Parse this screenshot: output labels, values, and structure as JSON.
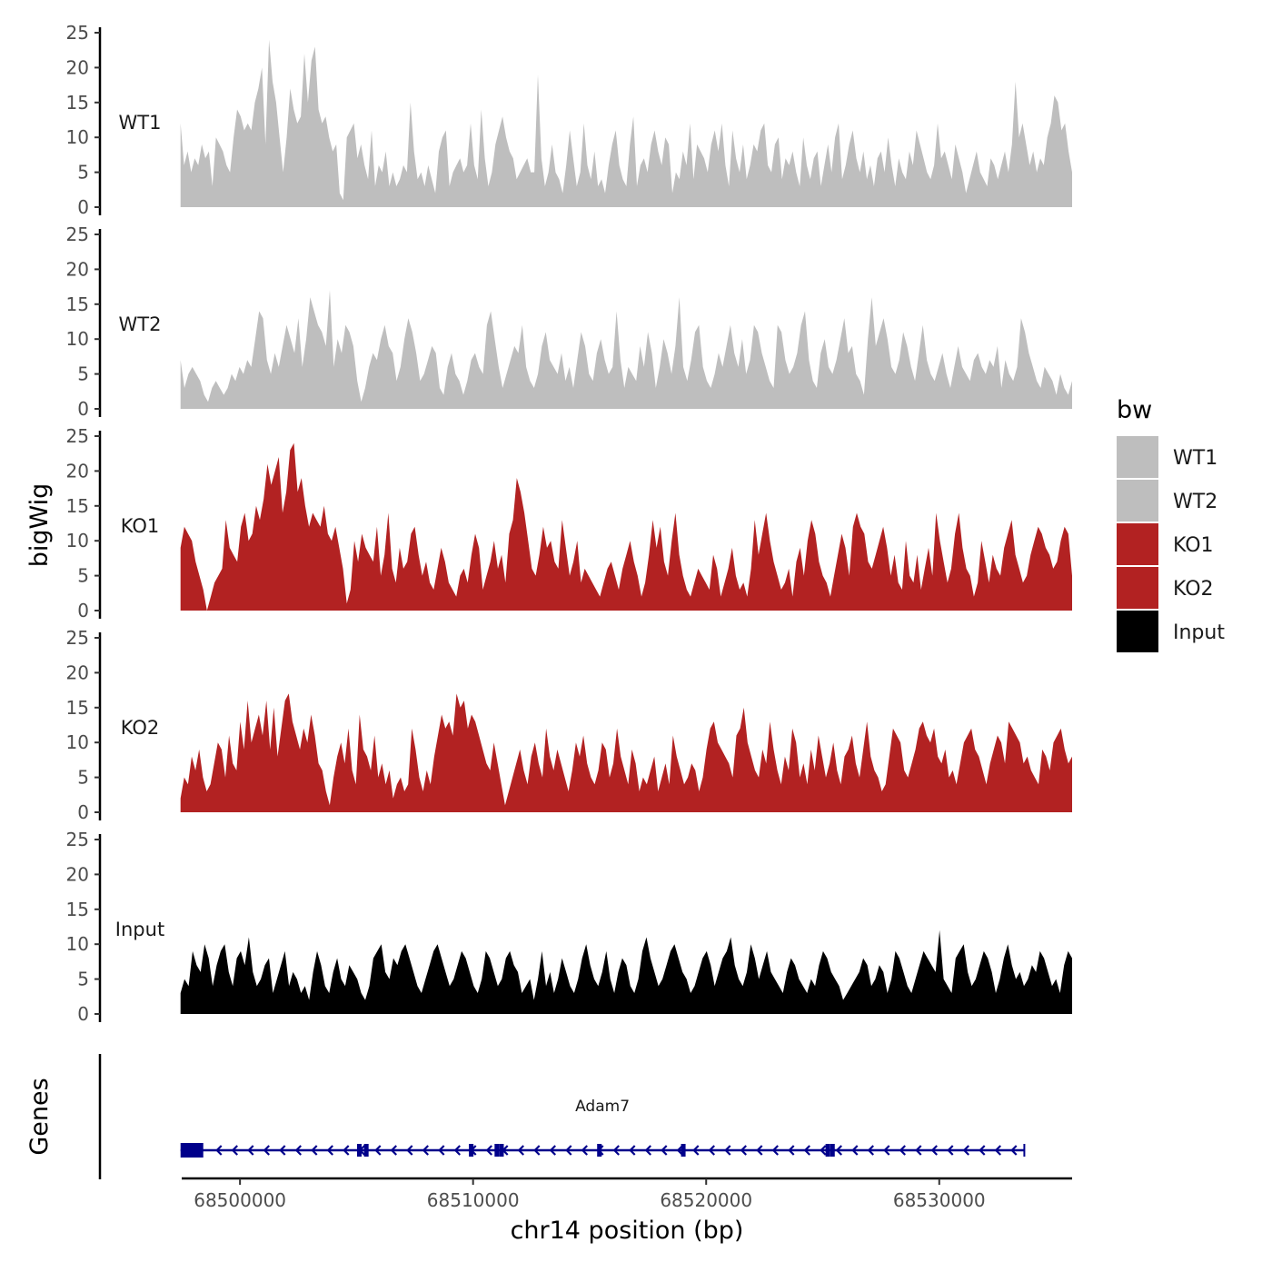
{
  "chart_data": {
    "type": "area",
    "ylabel": "bigWig",
    "xlabel": "chr14 position (bp)",
    "chromosome": "chr14",
    "x_range": [
      68497500,
      68535700
    ],
    "ylim": [
      0,
      25
    ],
    "y_ticks": [
      "0",
      "5",
      "10",
      "15",
      "20",
      "25"
    ],
    "x_ticks": [
      {
        "label": "68500000",
        "value": 68500000
      },
      {
        "label": "68510000",
        "value": 68510000
      },
      {
        "label": "68520000",
        "value": 68520000
      },
      {
        "label": "68530000",
        "value": 68530000
      }
    ],
    "legend": {
      "title": "bw",
      "entries": [
        {
          "label": "WT1",
          "color": "#bebebe"
        },
        {
          "label": "WT2",
          "color": "#bebebe"
        },
        {
          "label": "KO1",
          "color": "#b22222"
        },
        {
          "label": "KO2",
          "color": "#b22222"
        },
        {
          "label": "Input",
          "color": "#000000"
        }
      ]
    },
    "tracks": [
      {
        "name": "WT1",
        "color": "#bebebe",
        "start": 68497450,
        "end": 68535700,
        "values": [
          12,
          6,
          8,
          5,
          7,
          6,
          9,
          7,
          8,
          3,
          10,
          9,
          8,
          6,
          5,
          10,
          14,
          13,
          11,
          12,
          11,
          15,
          17,
          20,
          9,
          24,
          18,
          15,
          10,
          5,
          10,
          17,
          14,
          12,
          13,
          22,
          15,
          21,
          23,
          14,
          12,
          13,
          10,
          8,
          9,
          2,
          1,
          10,
          11,
          12,
          7,
          9,
          6,
          4,
          11,
          3,
          6,
          5,
          8,
          3,
          5,
          3,
          4,
          6,
          5,
          15,
          8,
          4,
          5,
          3,
          6,
          4,
          2,
          8,
          10,
          11,
          3,
          5,
          6,
          7,
          5,
          6,
          12,
          6,
          4,
          14,
          7,
          3,
          5,
          9,
          11,
          13,
          10,
          8,
          7,
          4,
          5,
          6,
          7,
          5,
          5,
          19,
          7,
          3,
          5,
          9,
          5,
          4,
          2,
          6,
          11,
          7,
          3,
          5,
          12,
          6,
          4,
          8,
          3,
          4,
          2,
          6,
          9,
          11,
          6,
          4,
          3,
          9,
          13,
          3,
          6,
          7,
          5,
          9,
          11,
          8,
          6,
          10,
          9,
          2,
          5,
          4,
          8,
          6,
          12,
          4,
          9,
          8,
          7,
          5,
          9,
          11,
          8,
          12,
          6,
          3,
          11,
          7,
          5,
          9,
          4,
          6,
          9,
          8,
          11,
          12,
          6,
          5,
          9,
          10,
          4,
          7,
          6,
          8,
          5,
          3,
          10,
          6,
          4,
          7,
          8,
          3,
          6,
          9,
          5,
          10,
          12,
          4,
          6,
          9,
          11,
          7,
          5,
          8,
          4,
          6,
          3,
          7,
          8,
          5,
          10,
          6,
          3,
          7,
          5,
          4,
          8,
          6,
          11,
          9,
          7,
          5,
          4,
          6,
          12,
          7,
          8,
          6,
          4,
          9,
          7,
          5,
          2,
          4,
          6,
          8,
          5,
          4,
          3,
          7,
          6,
          4,
          6,
          8,
          5,
          9,
          18,
          10,
          12,
          9,
          6,
          8,
          5,
          7,
          6,
          10,
          12,
          16,
          15,
          11,
          12,
          8,
          5
        ]
      },
      {
        "name": "WT2",
        "color": "#bebebe",
        "start": 68497450,
        "end": 68535700,
        "values": [
          7,
          3,
          5,
          6,
          5,
          4,
          2,
          1,
          3,
          4,
          3,
          2,
          3,
          5,
          4,
          6,
          5,
          7,
          6,
          10,
          14,
          13,
          7,
          5,
          8,
          6,
          9,
          12,
          10,
          8,
          13,
          6,
          10,
          16,
          14,
          12,
          11,
          9,
          17,
          6,
          10,
          8,
          12,
          11,
          9,
          4,
          1,
          3,
          6,
          8,
          7,
          10,
          12,
          9,
          8,
          4,
          6,
          10,
          13,
          11,
          8,
          4,
          5,
          7,
          9,
          8,
          3,
          2,
          6,
          8,
          5,
          4,
          2,
          4,
          7,
          8,
          6,
          5,
          12,
          14,
          10,
          6,
          3,
          5,
          7,
          9,
          8,
          12,
          6,
          4,
          3,
          5,
          9,
          11,
          7,
          6,
          5,
          8,
          4,
          6,
          3,
          7,
          11,
          9,
          5,
          4,
          8,
          10,
          7,
          5,
          6,
          14,
          7,
          3,
          6,
          5,
          4,
          9,
          6,
          11,
          8,
          3,
          6,
          10,
          8,
          5,
          9,
          16,
          6,
          4,
          7,
          11,
          12,
          6,
          4,
          3,
          5,
          8,
          6,
          9,
          12,
          8,
          6,
          10,
          5,
          7,
          12,
          11,
          8,
          6,
          4,
          3,
          12,
          11,
          7,
          5,
          6,
          8,
          12,
          14,
          7,
          4,
          3,
          8,
          10,
          6,
          5,
          7,
          10,
          13,
          8,
          9,
          5,
          4,
          2,
          10,
          16,
          9,
          11,
          13,
          10,
          6,
          5,
          7,
          11,
          9,
          6,
          4,
          8,
          12,
          7,
          5,
          4,
          6,
          8,
          5,
          3,
          6,
          9,
          6,
          5,
          4,
          7,
          8,
          6,
          5,
          7,
          6,
          9,
          3,
          7,
          5,
          4,
          6,
          13,
          11,
          8,
          6,
          4,
          3,
          6,
          5,
          4,
          2,
          5,
          3,
          2,
          4
        ]
      },
      {
        "name": "KO1",
        "color": "#b22222",
        "start": 68497450,
        "end": 68535700,
        "values": [
          9,
          12,
          11,
          10,
          7,
          5,
          3,
          0,
          2,
          4,
          5,
          6,
          13,
          9,
          8,
          7,
          12,
          14,
          10,
          11,
          15,
          13,
          16,
          21,
          18,
          20,
          22,
          14,
          17,
          23,
          24,
          17,
          19,
          15,
          12,
          14,
          13,
          12,
          15,
          11,
          10,
          12,
          9,
          6,
          1,
          3,
          10,
          7,
          11,
          9,
          8,
          7,
          12,
          5,
          8,
          14,
          6,
          4,
          9,
          6,
          7,
          11,
          12,
          8,
          5,
          7,
          4,
          3,
          6,
          9,
          7,
          4,
          3,
          2,
          5,
          6,
          4,
          8,
          11,
          9,
          3,
          5,
          7,
          10,
          6,
          8,
          4,
          11,
          13,
          19,
          17,
          14,
          10,
          6,
          5,
          8,
          12,
          9,
          10,
          7,
          6,
          13,
          9,
          5,
          7,
          10,
          4,
          6,
          5,
          4,
          3,
          2,
          4,
          6,
          7,
          5,
          3,
          6,
          8,
          10,
          7,
          5,
          2,
          4,
          8,
          13,
          9,
          12,
          7,
          5,
          10,
          14,
          8,
          5,
          3,
          2,
          4,
          6,
          5,
          4,
          3,
          8,
          6,
          2,
          4,
          6,
          9,
          5,
          3,
          4,
          2,
          6,
          13,
          8,
          11,
          14,
          10,
          7,
          5,
          3,
          4,
          6,
          2,
          7,
          9,
          5,
          10,
          13,
          11,
          7,
          5,
          4,
          2,
          5,
          8,
          11,
          9,
          5,
          12,
          14,
          12,
          11,
          7,
          6,
          8,
          10,
          12,
          9,
          5,
          8,
          4,
          3,
          10,
          5,
          4,
          8,
          3,
          6,
          9,
          5,
          14,
          10,
          7,
          4,
          6,
          11,
          14,
          9,
          6,
          5,
          2,
          4,
          10,
          7,
          4,
          8,
          6,
          5,
          9,
          11,
          13,
          8,
          6,
          4,
          5,
          8,
          10,
          12,
          11,
          9,
          8,
          6,
          7,
          10,
          12,
          11,
          5
        ]
      },
      {
        "name": "KO2",
        "color": "#b22222",
        "start": 68497450,
        "end": 68535700,
        "values": [
          2,
          5,
          4,
          8,
          6,
          9,
          5,
          3,
          4,
          7,
          10,
          9,
          5,
          11,
          7,
          6,
          13,
          9,
          16,
          10,
          12,
          14,
          11,
          16,
          9,
          15,
          8,
          12,
          16,
          17,
          13,
          11,
          9,
          12,
          10,
          14,
          11,
          7,
          6,
          3,
          1,
          5,
          8,
          10,
          7,
          12,
          6,
          4,
          14,
          9,
          8,
          6,
          11,
          5,
          7,
          4,
          6,
          2,
          4,
          5,
          3,
          4,
          12,
          9,
          5,
          3,
          6,
          4,
          8,
          11,
          14,
          12,
          13,
          11,
          17,
          15,
          16,
          12,
          14,
          13,
          11,
          9,
          7,
          6,
          10,
          7,
          4,
          1,
          3,
          5,
          7,
          9,
          6,
          4,
          8,
          10,
          7,
          5,
          12,
          8,
          6,
          9,
          7,
          5,
          3,
          6,
          10,
          8,
          11,
          7,
          5,
          4,
          6,
          10,
          9,
          5,
          7,
          12,
          8,
          6,
          4,
          9,
          7,
          3,
          5,
          4,
          6,
          8,
          3,
          5,
          7,
          4,
          11,
          8,
          6,
          4,
          5,
          7,
          6,
          3,
          5,
          9,
          12,
          13,
          10,
          9,
          8,
          7,
          5,
          11,
          12,
          15,
          10,
          8,
          6,
          5,
          9,
          7,
          13,
          9,
          6,
          4,
          8,
          6,
          12,
          10,
          5,
          7,
          4,
          9,
          6,
          11,
          8,
          5,
          7,
          10,
          6,
          4,
          8,
          9,
          11,
          7,
          5,
          9,
          13,
          8,
          6,
          5,
          3,
          4,
          8,
          12,
          11,
          10,
          6,
          5,
          7,
          9,
          12,
          13,
          11,
          10,
          12,
          8,
          7,
          9,
          5,
          6,
          4,
          7,
          10,
          11,
          12,
          9,
          8,
          6,
          4,
          7,
          9,
          11,
          10,
          7,
          13,
          12,
          11,
          10,
          7,
          8,
          6,
          5,
          4,
          9,
          8,
          6,
          10,
          11,
          12,
          9,
          7,
          8
        ]
      },
      {
        "name": "Input",
        "color": "#000000",
        "start": 68497450,
        "end": 68535700,
        "values": [
          3,
          5,
          4,
          9,
          7,
          6,
          10,
          8,
          4,
          7,
          9,
          10,
          6,
          4,
          8,
          9,
          7,
          11,
          6,
          4,
          5,
          7,
          8,
          3,
          5,
          7,
          9,
          4,
          6,
          5,
          3,
          4,
          2,
          6,
          9,
          7,
          4,
          3,
          6,
          8,
          5,
          4,
          7,
          6,
          5,
          3,
          2,
          4,
          8,
          9,
          10,
          6,
          5,
          8,
          7,
          9,
          10,
          8,
          6,
          4,
          3,
          5,
          7,
          9,
          10,
          8,
          6,
          4,
          5,
          7,
          9,
          8,
          6,
          4,
          3,
          5,
          9,
          8,
          6,
          4,
          5,
          8,
          9,
          7,
          6,
          3,
          4,
          5,
          2,
          5,
          9,
          4,
          6,
          3,
          5,
          8,
          6,
          4,
          3,
          5,
          8,
          10,
          7,
          5,
          4,
          6,
          9,
          5,
          3,
          6,
          8,
          7,
          4,
          3,
          5,
          9,
          11,
          8,
          6,
          4,
          5,
          7,
          9,
          10,
          8,
          6,
          5,
          3,
          4,
          6,
          8,
          9,
          7,
          4,
          6,
          8,
          9,
          11,
          7,
          5,
          4,
          6,
          10,
          8,
          5,
          7,
          9,
          6,
          5,
          4,
          3,
          6,
          8,
          7,
          5,
          4,
          3,
          5,
          4,
          7,
          9,
          8,
          6,
          5,
          4,
          2,
          3,
          4,
          5,
          6,
          8,
          7,
          4,
          5,
          7,
          6,
          3,
          5,
          9,
          8,
          6,
          4,
          3,
          5,
          7,
          9,
          8,
          7,
          6,
          12,
          5,
          4,
          3,
          8,
          9,
          10,
          6,
          4,
          5,
          7,
          9,
          8,
          6,
          3,
          5,
          8,
          10,
          7,
          5,
          6,
          4,
          5,
          7,
          6,
          9,
          8,
          6,
          4,
          5,
          3,
          7,
          9,
          8
        ]
      }
    ],
    "gene_track": {
      "ylabel": "Genes",
      "gene": "Adam7",
      "strand": "-",
      "start": 68497450,
      "end": 68533650,
      "color": "#00008b",
      "exons": [
        68497450,
        68497650,
        68497850,
        68498150,
        68505100,
        68505400,
        68509900,
        68511000,
        68511200,
        68515400,
        68519000,
        68525200,
        68525400
      ]
    }
  }
}
